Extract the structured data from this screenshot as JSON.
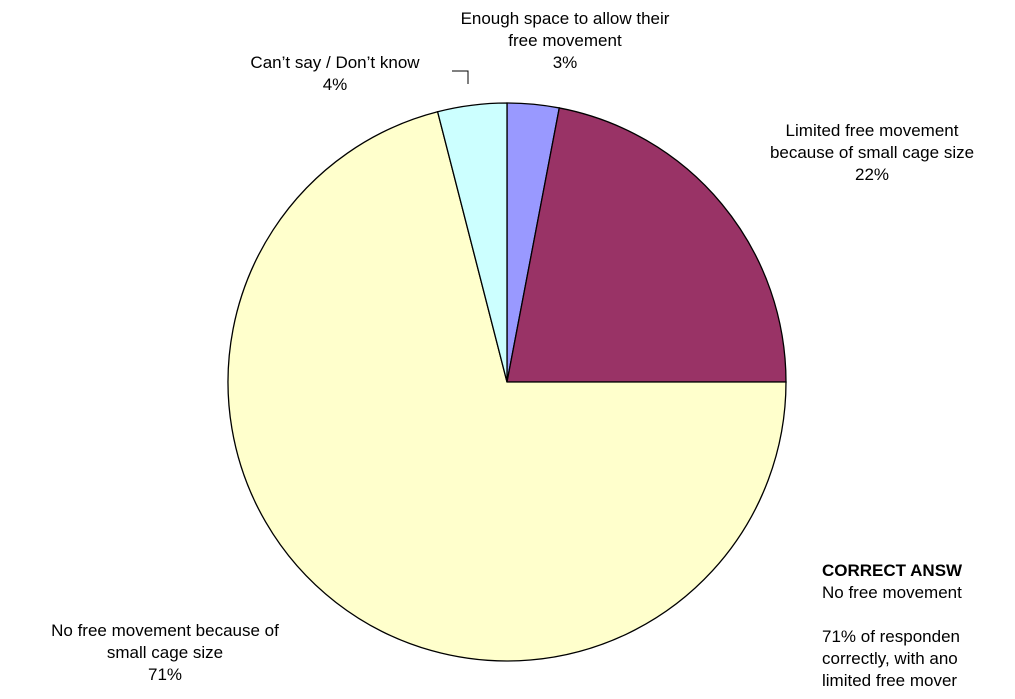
{
  "chart_data": {
    "type": "pie",
    "slices": [
      {
        "label_lines": [
          "Enough space to allow their",
          "free movement"
        ],
        "value": 3,
        "value_label": "3%",
        "color": "#9999ff"
      },
      {
        "label_lines": [
          "Limited free movement",
          "because of small cage size"
        ],
        "value": 22,
        "value_label": "22%",
        "color": "#993366"
      },
      {
        "label_lines": [
          "No free movement because of",
          "small cage size"
        ],
        "value": 71,
        "value_label": "71%",
        "color": "#ffffcc"
      },
      {
        "label_lines": [
          "Can’t say / Don’t know"
        ],
        "value": 4,
        "value_label": "4%",
        "color": "#ccffff"
      }
    ]
  },
  "note": {
    "heading": "CORRECT ANSW",
    "line1": "No free movement",
    "line2": "71% of responden",
    "line3": "correctly, with ano",
    "line4": "limited free mover"
  }
}
